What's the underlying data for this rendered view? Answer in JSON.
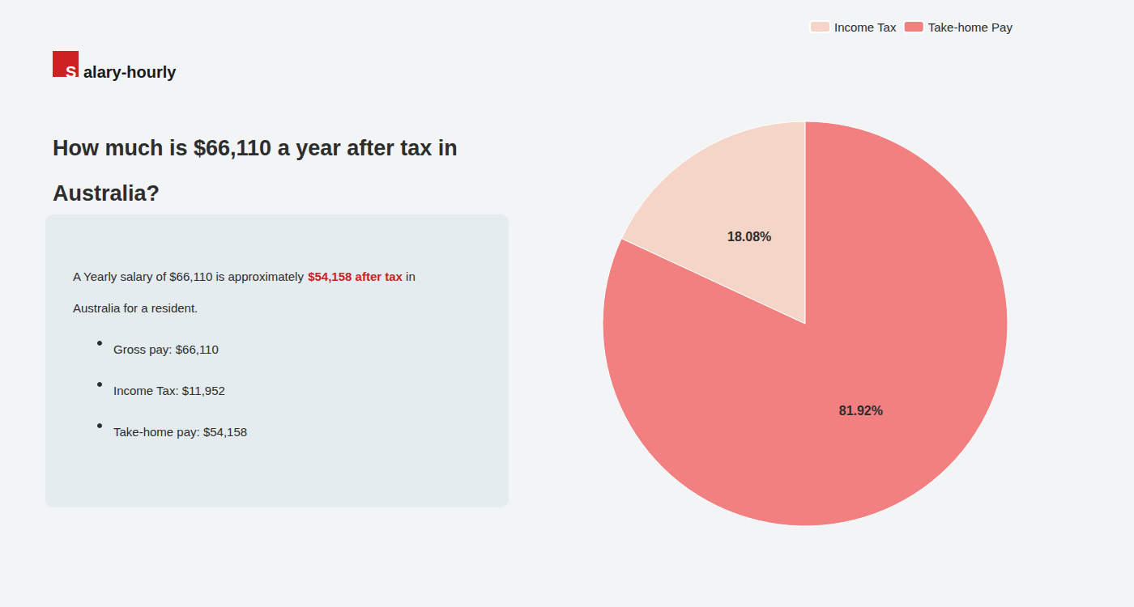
{
  "chart_data": {
    "type": "pie",
    "title": [
      "How much is $66,110 a year after tax in",
      "Australia?"
    ],
    "categories": [
      "Income Tax",
      "Take-home Pay"
    ],
    "values": [
      18.08,
      81.92
    ],
    "value_labels": [
      "18.08%",
      "81.92%"
    ],
    "colors": [
      "#f5d5c8",
      "#f28080"
    ],
    "data_labels": true,
    "legend": "top",
    "annotations": {
      "logo": {
        "text": [
          "S",
          "alary-hourly"
        ],
        "color": "#cc2222"
      },
      "info": [
        [
          {
            "text": "A Yearly salary of $66,110 is approximately "
          },
          {
            "text": "$54,158 after tax",
            "color": "#cc2222"
          },
          {
            "text": " in"
          }
        ],
        [
          {
            "text": "Australia for a resident."
          }
        ]
      ],
      "bullets": [
        "Gross pay: $66,110",
        "Income Tax: $11,952",
        "Take-home pay: $54,158"
      ]
    }
  }
}
